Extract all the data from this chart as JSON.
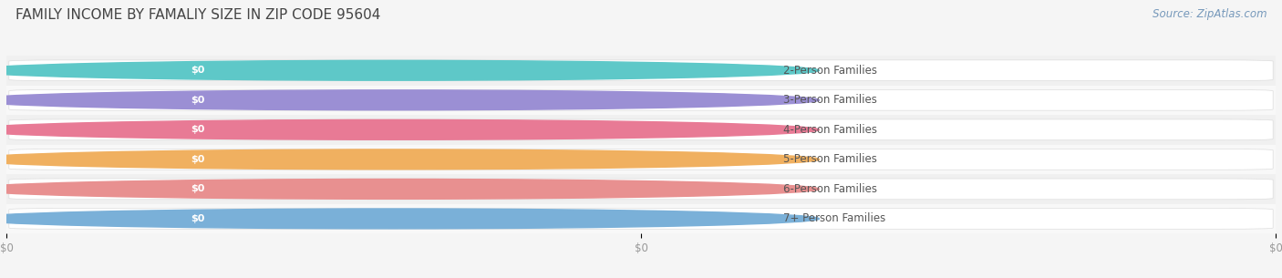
{
  "title": "FAMILY INCOME BY FAMALIY SIZE IN ZIP CODE 95604",
  "source_text": "Source: ZipAtlas.com",
  "categories": [
    "2-Person Families",
    "3-Person Families",
    "4-Person Families",
    "5-Person Families",
    "6-Person Families",
    "7+ Person Families"
  ],
  "values": [
    0,
    0,
    0,
    0,
    0,
    0
  ],
  "bar_colors": [
    "#5ec8c8",
    "#9b8fd4",
    "#e87a95",
    "#f0b060",
    "#e89090",
    "#7ab0d8"
  ],
  "bar_bg_colors": [
    "#e8f6f6",
    "#e8e6f8",
    "#faeaee",
    "#fdf3e3",
    "#faeaea",
    "#e3eef8"
  ],
  "row_bg_colors": [
    "#f0f0f0",
    "#f8f8f8",
    "#f0f0f0",
    "#f8f8f8",
    "#f0f0f0",
    "#f8f8f8"
  ],
  "value_label": "$0",
  "x_tick_labels": [
    "$0",
    "$0",
    "$0"
  ],
  "x_tick_positions": [
    0,
    0.5,
    1.0
  ],
  "background_color": "#f5f5f5",
  "title_fontsize": 11,
  "label_fontsize": 8.5,
  "source_fontsize": 8.5,
  "xlim": [
    0,
    1
  ],
  "n_bars": 6
}
